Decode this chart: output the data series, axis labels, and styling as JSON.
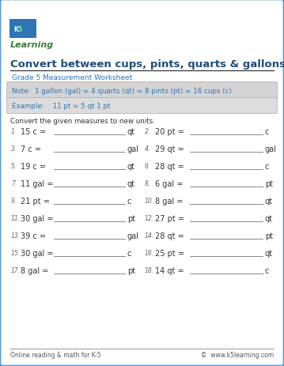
{
  "title": "Convert between cups, pints, quarts & gallons",
  "grade_label": "Grade 5 Measurement Worksheet",
  "note_text": "Note:  1 gallon (gal) = 4 quarts (qt) = 8 pints (pt) = 16 cups (c)",
  "example_text": "Example:    11 pt = 5 qt 1 pt",
  "instruction": "Convert the given measures to new units.",
  "border_color": "#5b9bd5",
  "background_color": "#ffffff",
  "note_bg": "#d4d4d4",
  "example_bg": "#dcdcdc",
  "title_color": "#1f4e79",
  "grade_color": "#2e75b6",
  "note_color": "#2e75b6",
  "text_color": "#333333",
  "line_color": "#888888",
  "footer_color": "#555555",
  "problems": [
    {
      "num": "1.",
      "left": "15 c =",
      "right_unit": "qt"
    },
    {
      "num": "2.",
      "left": "20 pt =",
      "right_unit": "c"
    },
    {
      "num": "3.",
      "left": "7 c =",
      "right_unit": "gal"
    },
    {
      "num": "4.",
      "left": "29 qt =",
      "right_unit": "gal"
    },
    {
      "num": "5.",
      "left": "19 c =",
      "right_unit": "qt"
    },
    {
      "num": "6.",
      "left": "28 qt =",
      "right_unit": "c"
    },
    {
      "num": "7.",
      "left": "11 gal =",
      "right_unit": "qt"
    },
    {
      "num": "8.",
      "left": "6 gal =",
      "right_unit": "pt"
    },
    {
      "num": "9.",
      "left": "21 pt =",
      "right_unit": "c"
    },
    {
      "num": "10.",
      "left": "8 gal =",
      "right_unit": "qt"
    },
    {
      "num": "11.",
      "left": "30 gal =",
      "right_unit": "pt"
    },
    {
      "num": "12.",
      "left": "27 pt =",
      "right_unit": "qt"
    },
    {
      "num": "13.",
      "left": "39 c =",
      "right_unit": "gal"
    },
    {
      "num": "14.",
      "left": "28 qt =",
      "right_unit": "pt"
    },
    {
      "num": "15.",
      "left": "30 gal =",
      "right_unit": "c"
    },
    {
      "num": "16.",
      "left": "25 pt =",
      "right_unit": "qt"
    },
    {
      "num": "17.",
      "left": "8 gal =",
      "right_unit": "pt"
    },
    {
      "num": "18.",
      "left": "14 qt =",
      "right_unit": "c"
    }
  ],
  "footer_left": "Online reading & math for K-5",
  "footer_right": "©  www.k5learning.com"
}
